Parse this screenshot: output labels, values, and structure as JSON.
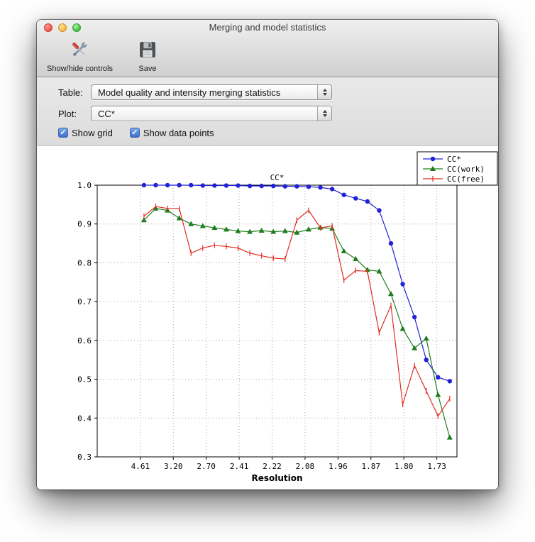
{
  "window": {
    "title": "Merging and model statistics"
  },
  "toolbar": {
    "buttons": [
      {
        "label": "Show/hide controls",
        "icon": "tools-icon"
      },
      {
        "label": "Save",
        "icon": "save-icon"
      }
    ]
  },
  "controls": {
    "table": {
      "label": "Table:",
      "value": "Model quality and intensity merging statistics"
    },
    "plot": {
      "label": "Plot:",
      "value": "CC*"
    },
    "checkboxes": [
      {
        "label": "Show grid",
        "checked": true
      },
      {
        "label": "Show data points",
        "checked": true
      }
    ]
  },
  "chart_data": {
    "type": "line",
    "title": "CC*",
    "xlabel": "Resolution",
    "x_tick_labels": [
      "4.61",
      "3.20",
      "2.70",
      "2.41",
      "2.22",
      "2.08",
      "1.96",
      "1.87",
      "1.80",
      "1.73"
    ],
    "ylim": [
      0.3,
      1.0
    ],
    "y_ticks": [
      0.3,
      0.4,
      0.5,
      0.6,
      0.7,
      0.8,
      0.9,
      1.0
    ],
    "grid": true,
    "show_data_points": true,
    "legend_position": "upper right",
    "series": [
      {
        "name": "CC*",
        "color": "#2121d8",
        "marker": "circle",
        "values": [
          1.0,
          1.0,
          1.0,
          1.0,
          1.0,
          0.999,
          0.999,
          0.999,
          0.999,
          0.998,
          0.998,
          0.998,
          0.997,
          0.997,
          0.996,
          0.994,
          0.99,
          0.975,
          0.966,
          0.958,
          0.935,
          0.85,
          0.745,
          0.66,
          0.55,
          0.505,
          0.495
        ]
      },
      {
        "name": "CC(work)",
        "color": "#1f7d1f",
        "marker": "triangle",
        "values": [
          0.91,
          0.94,
          0.935,
          0.915,
          0.9,
          0.895,
          0.89,
          0.886,
          0.882,
          0.88,
          0.883,
          0.88,
          0.882,
          0.878,
          0.886,
          0.891,
          0.888,
          0.83,
          0.81,
          0.782,
          0.778,
          0.72,
          0.63,
          0.58,
          0.605,
          0.46,
          0.35
        ]
      },
      {
        "name": "CC(free)",
        "color": "#e02d22",
        "marker": "vline",
        "values": [
          0.92,
          0.945,
          0.94,
          0.94,
          0.825,
          0.838,
          0.845,
          0.842,
          0.838,
          0.825,
          0.818,
          0.812,
          0.81,
          0.91,
          0.935,
          0.89,
          0.895,
          0.755,
          0.78,
          0.778,
          0.62,
          0.69,
          0.435,
          0.535,
          0.47,
          0.405,
          0.45
        ]
      }
    ]
  }
}
